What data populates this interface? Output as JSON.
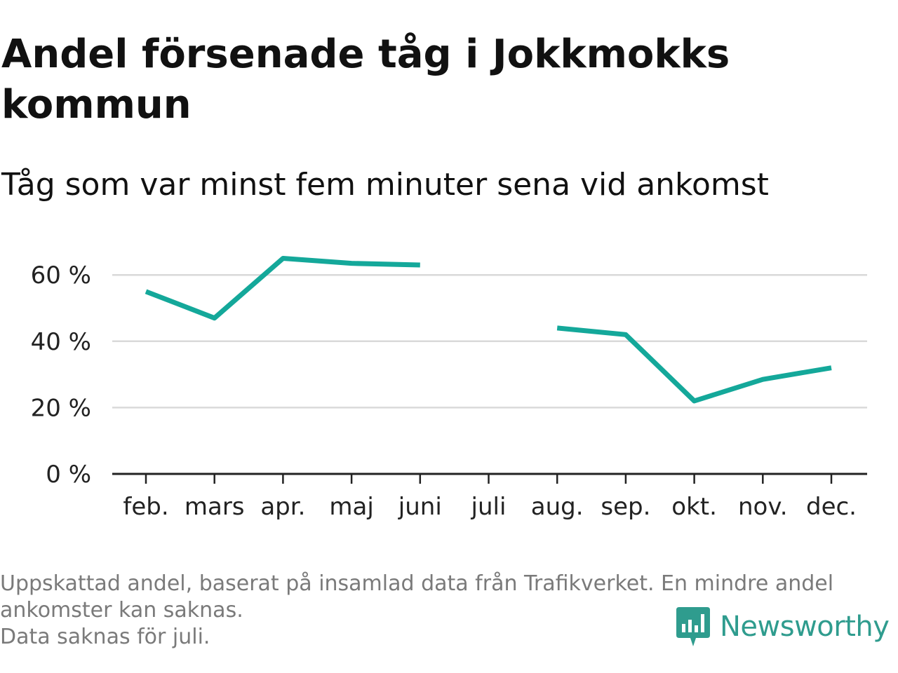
{
  "header": {
    "title": "Andel försenade tåg i Jokkmokks kommun",
    "subtitle": "Tåg som var minst fem minuter sena vid ankomst"
  },
  "footer": {
    "lines": [
      "Uppskattad andel, baserat på insamlad data från Trafikverket. En mindre andel",
      "ankomster kan saknas.",
      "Data saknas för juli."
    ],
    "brand": "Newsworthy"
  },
  "colors": {
    "line": "#14a89a",
    "grid": "#d9d9d9",
    "axis": "#222222",
    "brand": "#2f9c8e"
  },
  "chart_data": {
    "type": "line",
    "categories": [
      "feb.",
      "mars",
      "apr.",
      "maj",
      "juni",
      "juli",
      "aug.",
      "sep.",
      "okt.",
      "nov.",
      "dec."
    ],
    "series": [
      {
        "values": [
          55,
          47,
          65,
          63.5,
          63,
          null,
          44,
          42,
          22,
          28.5,
          32
        ]
      }
    ],
    "ylim": [
      0,
      65
    ],
    "yticks": [
      0,
      20,
      40,
      60
    ],
    "ytick_labels": [
      "0 %",
      "20 %",
      "40 %",
      "60 %"
    ],
    "grid": true,
    "legend": false
  }
}
